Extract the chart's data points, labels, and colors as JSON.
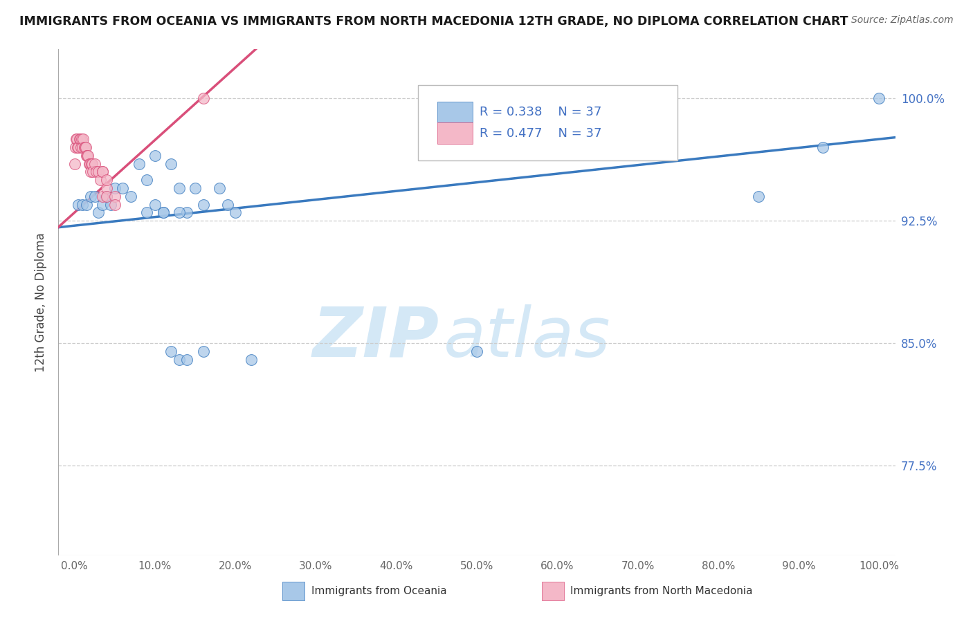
{
  "title": "IMMIGRANTS FROM OCEANIA VS IMMIGRANTS FROM NORTH MACEDONIA 12TH GRADE, NO DIPLOMA CORRELATION CHART",
  "source": "Source: ZipAtlas.com",
  "ylabel": "12th Grade, No Diploma",
  "legend_labels": [
    "Immigrants from Oceania",
    "Immigrants from North Macedonia"
  ],
  "R_oceania": 0.338,
  "N_oceania": 37,
  "R_macedonia": 0.477,
  "N_macedonia": 37,
  "color_oceania": "#a8c8e8",
  "color_macedonia": "#f4b8c8",
  "line_color_oceania": "#3a7abf",
  "line_color_macedonia": "#d94f7a",
  "xlim": [
    -0.02,
    1.02
  ],
  "ylim": [
    0.72,
    1.03
  ],
  "ytick_vals": [
    0.775,
    0.85,
    0.925,
    1.0
  ],
  "ytick_labels": [
    "77.5%",
    "85.0%",
    "92.5%",
    "100.0%"
  ],
  "xtick_vals": [
    0.0,
    0.1,
    0.2,
    0.3,
    0.4,
    0.5,
    0.6,
    0.7,
    0.8,
    0.9,
    1.0
  ],
  "xtick_labels": [
    "0.0%",
    "10.0%",
    "20.0%",
    "30.0%",
    "40.0%",
    "50.0%",
    "60.0%",
    "70.0%",
    "80.0%",
    "90.0%",
    "100.0%"
  ],
  "oceania_x": [
    0.005,
    0.01,
    0.015,
    0.02,
    0.025,
    0.03,
    0.035,
    0.04,
    0.045,
    0.05,
    0.06,
    0.07,
    0.08,
    0.09,
    0.1,
    0.12,
    0.13,
    0.14,
    0.15,
    0.16,
    0.18,
    0.19,
    0.2,
    0.22,
    0.1,
    0.12,
    0.5,
    0.09,
    0.11,
    0.13,
    0.14,
    0.16,
    0.13,
    0.11,
    0.85,
    0.93,
    1.0
  ],
  "oceania_y": [
    0.935,
    0.935,
    0.935,
    0.94,
    0.94,
    0.93,
    0.935,
    0.94,
    0.935,
    0.945,
    0.945,
    0.94,
    0.96,
    0.95,
    0.965,
    0.96,
    0.945,
    0.93,
    0.945,
    0.935,
    0.945,
    0.935,
    0.93,
    0.84,
    0.935,
    0.845,
    0.845,
    0.93,
    0.93,
    0.84,
    0.84,
    0.845,
    0.93,
    0.93,
    0.94,
    0.97,
    1.0
  ],
  "macedonia_x": [
    0.0,
    0.001,
    0.002,
    0.003,
    0.004,
    0.005,
    0.006,
    0.007,
    0.008,
    0.009,
    0.01,
    0.011,
    0.012,
    0.013,
    0.014,
    0.015,
    0.016,
    0.017,
    0.018,
    0.019,
    0.02,
    0.021,
    0.022,
    0.023,
    0.025,
    0.027,
    0.03,
    0.032,
    0.035,
    0.035,
    0.035,
    0.04,
    0.04,
    0.04,
    0.05,
    0.05,
    0.16
  ],
  "macedonia_y": [
    0.96,
    0.97,
    0.975,
    0.975,
    0.97,
    0.97,
    0.975,
    0.975,
    0.97,
    0.975,
    0.97,
    0.975,
    0.97,
    0.97,
    0.97,
    0.965,
    0.965,
    0.965,
    0.96,
    0.96,
    0.955,
    0.96,
    0.96,
    0.955,
    0.96,
    0.955,
    0.955,
    0.95,
    0.955,
    0.955,
    0.94,
    0.945,
    0.95,
    0.94,
    0.94,
    0.935,
    1.0
  ]
}
